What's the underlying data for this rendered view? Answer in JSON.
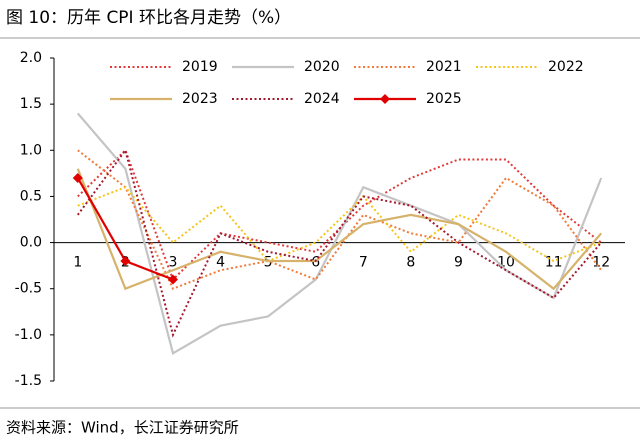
{
  "chart_data": {
    "type": "line",
    "title": "图 10：历年 CPI 环比各月走势（%）",
    "source": "资料来源：Wind，长江证券研究所",
    "categories": [
      "1",
      "2",
      "3",
      "4",
      "5",
      "6",
      "7",
      "8",
      "9",
      "10",
      "11",
      "12"
    ],
    "ylim": [
      -1.5,
      2.0
    ],
    "yticks": [
      -1.5,
      {
        "value": -1.0,
        "label": "-1.0"
      },
      -0.5,
      {
        "value": 0.0,
        "label": "0.0"
      },
      0.5,
      {
        "value": 1.0,
        "label": "1.0"
      },
      1.5,
      {
        "value": 2.0,
        "label": "2.0"
      }
    ],
    "series": [
      {
        "name": "2019",
        "color": "#e03a3a",
        "line_style": "dotted",
        "values": [
          0.5,
          1.0,
          -0.4,
          0.1,
          0.0,
          -0.1,
          0.4,
          0.7,
          0.9,
          0.9,
          0.4,
          0.0
        ]
      },
      {
        "name": "2020",
        "color": "#c4c4c4",
        "line_style": "solid",
        "values": [
          1.4,
          0.8,
          -1.2,
          -0.9,
          -0.8,
          -0.4,
          0.6,
          0.4,
          0.2,
          -0.3,
          -0.6,
          0.7
        ]
      },
      {
        "name": "2021",
        "color": "#f07a3a",
        "line_style": "dotted",
        "values": [
          1.0,
          0.6,
          -0.5,
          -0.3,
          -0.2,
          -0.4,
          0.3,
          0.1,
          0.0,
          0.7,
          0.4,
          -0.3
        ]
      },
      {
        "name": "2022",
        "color": "#f5c518",
        "line_style": "dotted",
        "values": [
          0.4,
          0.6,
          0.0,
          0.4,
          -0.2,
          0.0,
          0.5,
          -0.1,
          0.3,
          0.1,
          -0.2,
          0.0
        ]
      },
      {
        "name": "2023",
        "color": "#d6b26a",
        "line_style": "solid",
        "values": [
          0.8,
          -0.5,
          -0.3,
          -0.1,
          -0.2,
          -0.2,
          0.2,
          0.3,
          0.2,
          -0.1,
          -0.5,
          0.1
        ]
      },
      {
        "name": "2024",
        "color": "#a3182e",
        "line_style": "dotted",
        "values": [
          0.3,
          1.0,
          -1.0,
          0.1,
          -0.1,
          -0.2,
          0.5,
          0.4,
          0.0,
          -0.3,
          -0.6,
          0.0
        ]
      },
      {
        "name": "2025",
        "color": "#e00000",
        "line_style": "solid",
        "marker": "diamond",
        "values": [
          0.7,
          -0.2,
          -0.4,
          null,
          null,
          null,
          null,
          null,
          null,
          null,
          null,
          null
        ]
      }
    ]
  }
}
